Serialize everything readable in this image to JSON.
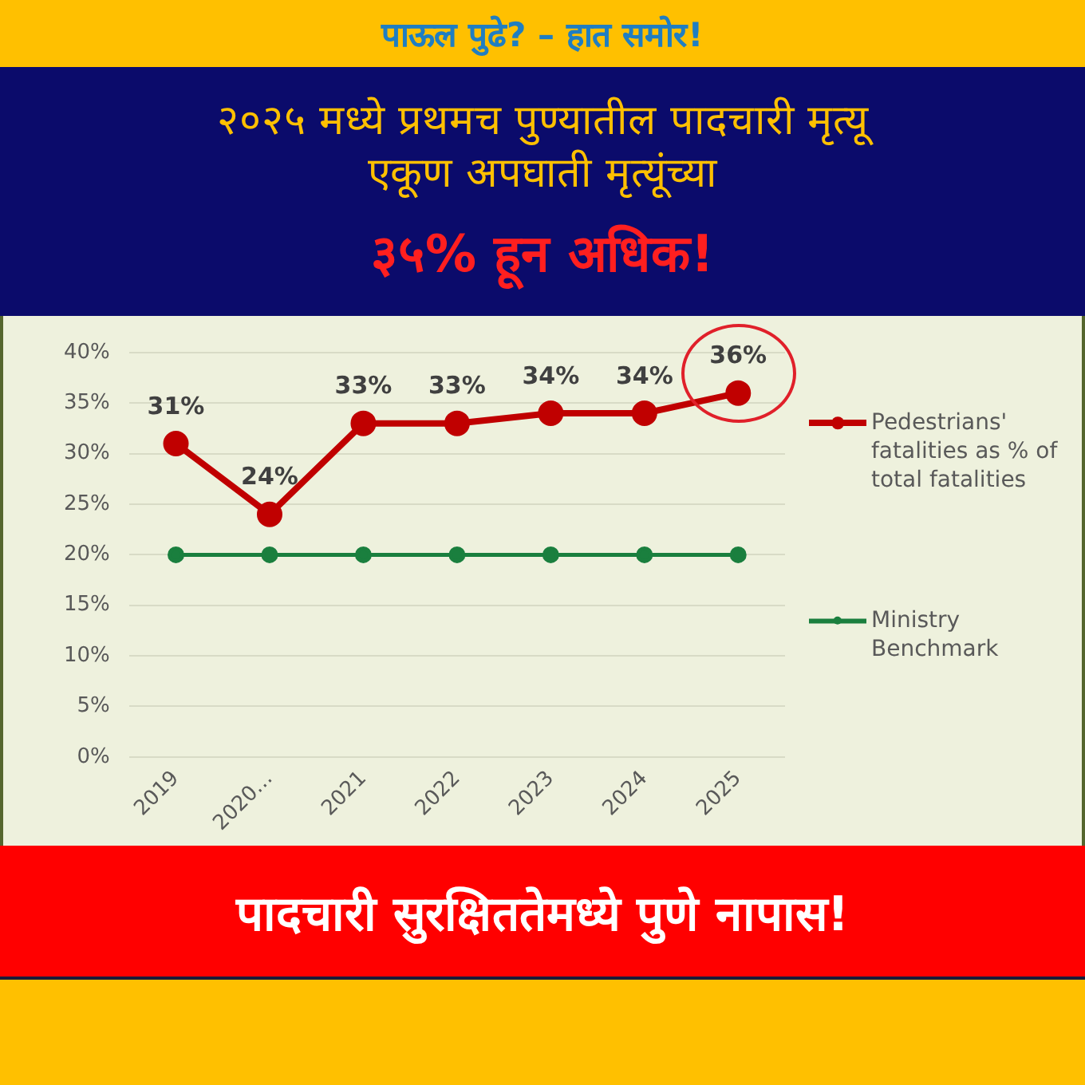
{
  "chart_data": {
    "type": "line",
    "title": "२०२५ मध्ये प्रथमच पुण्यातील पादचारी मृत्यू एकूण अपघाती मृत्यूंच्या",
    "subtitle": "३५% हून अधिक!",
    "annotations": [
      "पाऊल पुढे? – हात समोर!",
      "पादचारी सुरक्षिततेमध्ये पुणे नापास!"
    ],
    "categories": [
      "2019",
      "2020…",
      "2021",
      "2022",
      "2023",
      "2024",
      "2025"
    ],
    "series": [
      {
        "name": "Pedestrians' fatalities as % of total fatalities",
        "color": "#c00000",
        "values": [
          31,
          24,
          33,
          33,
          34,
          34,
          36
        ],
        "value_labels": [
          "31%",
          "24%",
          "33%",
          "33%",
          "34%",
          "34%",
          "36%"
        ]
      },
      {
        "name": "Ministry Benchmark",
        "color": "#1a7f3e",
        "values": [
          20,
          20,
          20,
          20,
          20,
          20,
          20
        ]
      }
    ],
    "ylim": [
      0,
      40
    ],
    "yticks": [
      {
        "value": 0,
        "label": "0%"
      },
      {
        "value": 5,
        "label": "5%"
      },
      {
        "value": 10,
        "label": "10%"
      },
      {
        "value": 15,
        "label": "15%"
      },
      {
        "value": 20,
        "label": "20%"
      },
      {
        "value": 25,
        "label": "25%"
      },
      {
        "value": 30,
        "label": "30%"
      },
      {
        "value": 35,
        "label": "35%"
      },
      {
        "value": 40,
        "label": "40%"
      }
    ],
    "grid": "y",
    "legend": "right",
    "marker": "circle",
    "line_style": "solid"
  }
}
